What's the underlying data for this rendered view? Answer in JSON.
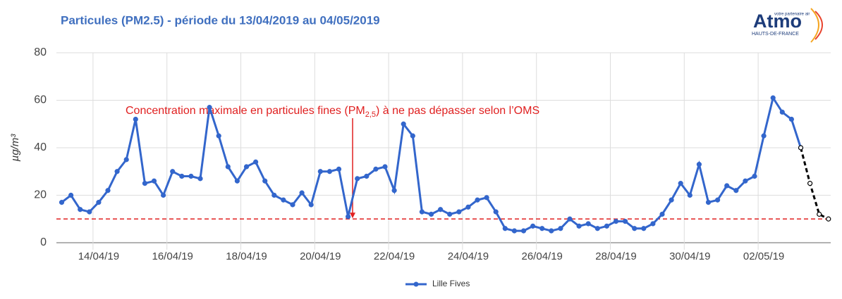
{
  "chart_data": {
    "type": "line",
    "title": "Particules (PM2.5) - période du 13/04/2019 au 04/05/2019",
    "y_label": "µg/m³",
    "logo": {
      "name": "Atmo",
      "tagline": "votre partenaire air",
      "region": "HAUTS-DE-FRANCE"
    },
    "categories": [
      null,
      null,
      null,
      null,
      "14/04/19",
      null,
      null,
      null,
      null,
      null,
      null,
      null,
      "16/04/19",
      null,
      null,
      null,
      null,
      null,
      null,
      null,
      "18/04/19",
      null,
      null,
      null,
      null,
      null,
      null,
      null,
      "20/04/19",
      null,
      null,
      null,
      null,
      null,
      null,
      null,
      "22/04/19",
      null,
      null,
      null,
      null,
      null,
      null,
      null,
      "24/04/19",
      null,
      null,
      null,
      null,
      null,
      null,
      null,
      "26/04/19",
      null,
      null,
      null,
      null,
      null,
      null,
      null,
      "28/04/19",
      null,
      null,
      null,
      null,
      null,
      null,
      null,
      "30/04/19",
      null,
      null,
      null,
      null,
      null,
      null,
      null,
      "02/05/19",
      null,
      null,
      null,
      null,
      null,
      null,
      null
    ],
    "series": [
      {
        "name": "Lille Fives",
        "color": "#3366cc",
        "values": [
          17,
          20,
          14,
          13,
          17,
          22,
          30,
          35,
          52,
          25,
          26,
          20,
          30,
          28,
          28,
          27,
          57,
          45,
          32,
          26,
          32,
          34,
          26,
          20,
          18,
          16,
          21,
          16,
          30,
          30,
          31,
          11,
          27,
          28,
          31,
          32,
          22,
          50,
          45,
          13,
          12,
          14,
          12,
          13,
          15,
          18,
          19,
          13,
          6,
          5,
          5,
          7,
          6,
          5,
          6,
          10,
          7,
          8,
          6,
          7,
          9,
          9,
          6,
          6,
          8,
          12,
          18,
          25,
          20,
          33,
          17,
          18,
          24,
          22,
          26,
          28,
          45,
          61,
          55,
          52,
          40,
          null,
          null,
          null
        ]
      }
    ],
    "forecast": {
      "color": "#000000",
      "values": [
        null,
        null,
        null,
        null,
        null,
        null,
        null,
        null,
        null,
        null,
        null,
        null,
        null,
        null,
        null,
        null,
        null,
        null,
        null,
        null,
        null,
        null,
        null,
        null,
        null,
        null,
        null,
        null,
        null,
        null,
        null,
        null,
        null,
        null,
        null,
        null,
        null,
        null,
        null,
        null,
        null,
        null,
        null,
        null,
        null,
        null,
        null,
        null,
        null,
        null,
        null,
        null,
        null,
        null,
        null,
        null,
        null,
        null,
        null,
        null,
        null,
        null,
        null,
        null,
        null,
        null,
        null,
        null,
        null,
        null,
        null,
        null,
        null,
        null,
        null,
        null,
        null,
        null,
        null,
        null,
        40,
        25,
        12,
        10
      ]
    },
    "threshold": {
      "value": 10,
      "color": "#e02020",
      "label_start": "Concentration maximale en particules fines (PM",
      "label_sub": "2,5",
      "label_end": ") à ne pas dépasser selon l’OMS"
    },
    "ylim": [
      0,
      80
    ],
    "yticks": [
      0,
      20,
      40,
      60,
      80
    ],
    "grid": true,
    "legend": "bottom"
  }
}
